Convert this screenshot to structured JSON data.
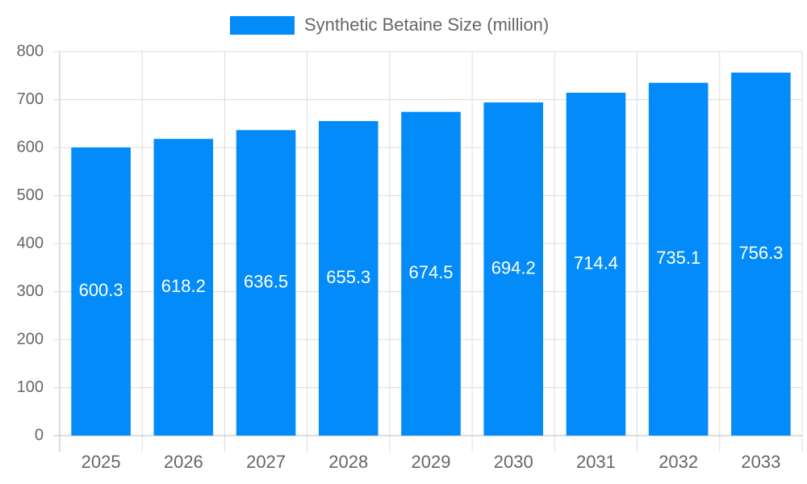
{
  "chart_data": {
    "type": "bar",
    "categories": [
      "2025",
      "2026",
      "2027",
      "2028",
      "2029",
      "2030",
      "2031",
      "2032",
      "2033"
    ],
    "series": [
      {
        "name": "Synthetic Betaine Size (million)",
        "color": "#038cf9",
        "values": [
          600.3,
          618.2,
          636.5,
          655.3,
          674.5,
          694.2,
          714.4,
          735.1,
          756.3
        ]
      }
    ],
    "ylim": [
      0,
      800
    ],
    "yticks": [
      0,
      100,
      200,
      300,
      400,
      500,
      600,
      700,
      800
    ],
    "grid": true,
    "legend": "top"
  }
}
